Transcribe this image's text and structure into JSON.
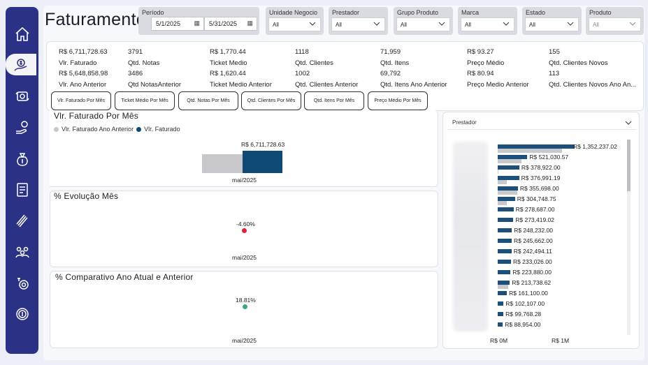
{
  "header": {
    "title": "Faturamento"
  },
  "period": {
    "label": "Período",
    "start": "5/1/2025",
    "end": "5/31/2025",
    "icon": "calendar-icon"
  },
  "filters": [
    {
      "label": "Unidade Negocio",
      "value": "All"
    },
    {
      "label": "Prestador",
      "value": "All"
    },
    {
      "label": "Grupo Produto",
      "value": "All"
    },
    {
      "label": "Marca",
      "value": "All"
    },
    {
      "label": "Estado",
      "value": "All"
    },
    {
      "label": "Produto",
      "value": "All"
    }
  ],
  "kpis": [
    {
      "value": "R$ 6,711,728.63",
      "label": "Vlr. Faturado",
      "prev_value": "R$ 5,648,858.98",
      "prev_label": "Vlr. Ano Anterior"
    },
    {
      "value": "3791",
      "label": "Qtd. Notas",
      "prev_value": "3486",
      "prev_label": "Qtd NotasAnterior"
    },
    {
      "value": "R$ 1,770.44",
      "label": "Ticket Medio",
      "prev_value": "R$ 1,620.44",
      "prev_label": "Ticket Medio Anterior"
    },
    {
      "value": "1118",
      "label": "Qtd. Clientes",
      "prev_value": "1002",
      "prev_label": "Qtd. Clientes Anterior"
    },
    {
      "value": "71,959",
      "label": "Qtd. Itens",
      "prev_value": "69,792",
      "prev_label": "Qtd. Itens Ano Anterior"
    },
    {
      "value": "R$ 93.27",
      "label": "Preço Médio",
      "prev_value": "R$ 80.94",
      "prev_label": "Preço Medio Anterior"
    },
    {
      "value": "155",
      "label": "Qtd. Clientes Novos",
      "prev_value": "113",
      "prev_label": "Qtd. Clientes Novos Ano An..."
    }
  ],
  "tabs": [
    "Vlr. Faturado Por Mês",
    "Ticket Médio Por Mês",
    "Qtd. Notas Por Mês",
    "Qtd. Clientes Por Mês",
    "Qtd. Itens Por Mês",
    "Preço Médio Por Mês"
  ],
  "chart1": {
    "title": "Vlr. Faturado Por Mês",
    "legend_prev": "Vlr. Faturado Ano Anterior",
    "legend_curr": "Vlr. Faturado",
    "colors": {
      "prev": "#c8c8cc",
      "curr": "#0f4a74"
    }
  },
  "chart2": {
    "title": "% Evolução Mês",
    "color": "#e0203a"
  },
  "chart3": {
    "title": "% Comparativo Ano Atual e Anterior",
    "color": "#3aa886"
  },
  "prestador": {
    "title": "Prestador",
    "axis_min": "R$ 0M",
    "axis_max": "R$ 1M"
  },
  "chart_data": [
    {
      "type": "bar",
      "title": "Vlr. Faturado Por Mês",
      "categories": [
        "mai/2025"
      ],
      "series": [
        {
          "name": "Vlr. Faturado Ano Anterior",
          "values": [
            5648858.98
          ]
        },
        {
          "name": "Vlr. Faturado",
          "values": [
            6711728.63
          ]
        }
      ],
      "data_labels": [
        "R$ 6,711,728.63"
      ]
    },
    {
      "type": "scatter",
      "title": "% Evolução Mês",
      "categories": [
        "mai/2025"
      ],
      "values": [
        -4.6
      ],
      "data_labels": [
        "-4.60%"
      ]
    },
    {
      "type": "scatter",
      "title": "% Comparativo Ano Atual e Anterior",
      "categories": [
        "mai/2025"
      ],
      "values": [
        18.81
      ],
      "data_labels": [
        "18.81%"
      ]
    },
    {
      "type": "bar",
      "orientation": "horizontal",
      "title": "Prestador",
      "xlim": [
        0,
        1500000
      ],
      "ticks": [
        "R$ 0M",
        "R$ 1M"
      ],
      "series": [
        {
          "name": "current",
          "values": [
            1352237.02,
            521030.57,
            378922.0,
            376991.19,
            355698.0,
            304748.75,
            278687.0,
            273419.02,
            248232.0,
            245662.0,
            242494.11,
            233026.0,
            223880.0,
            213738.62,
            161100.0,
            102107.0,
            99768.28,
            88954.0
          ]
        },
        {
          "name": "previous",
          "values": [
            1130000,
            420000,
            15000,
            0,
            340000,
            0,
            0,
            0,
            0,
            0,
            0,
            0,
            0,
            180000,
            0,
            0,
            0,
            0
          ]
        }
      ],
      "data_labels": [
        "R$ 1,352,237.02",
        "R$ 521,030.57",
        "R$ 378,922.00",
        "R$ 376,991.19",
        "R$ 355,698.00",
        "R$ 304,748.75",
        "R$ 278,687.00",
        "R$ 273,419.02",
        "R$ 248,232.00",
        "R$ 245,662.00",
        "R$ 242,494.11",
        "R$ 233,026.00",
        "R$ 223,880.00",
        "R$ 213,738.62",
        "R$ 161,100.00",
        "R$ 102,107.00",
        "R$ 99,768.28",
        "R$ 88,954.00"
      ]
    }
  ]
}
